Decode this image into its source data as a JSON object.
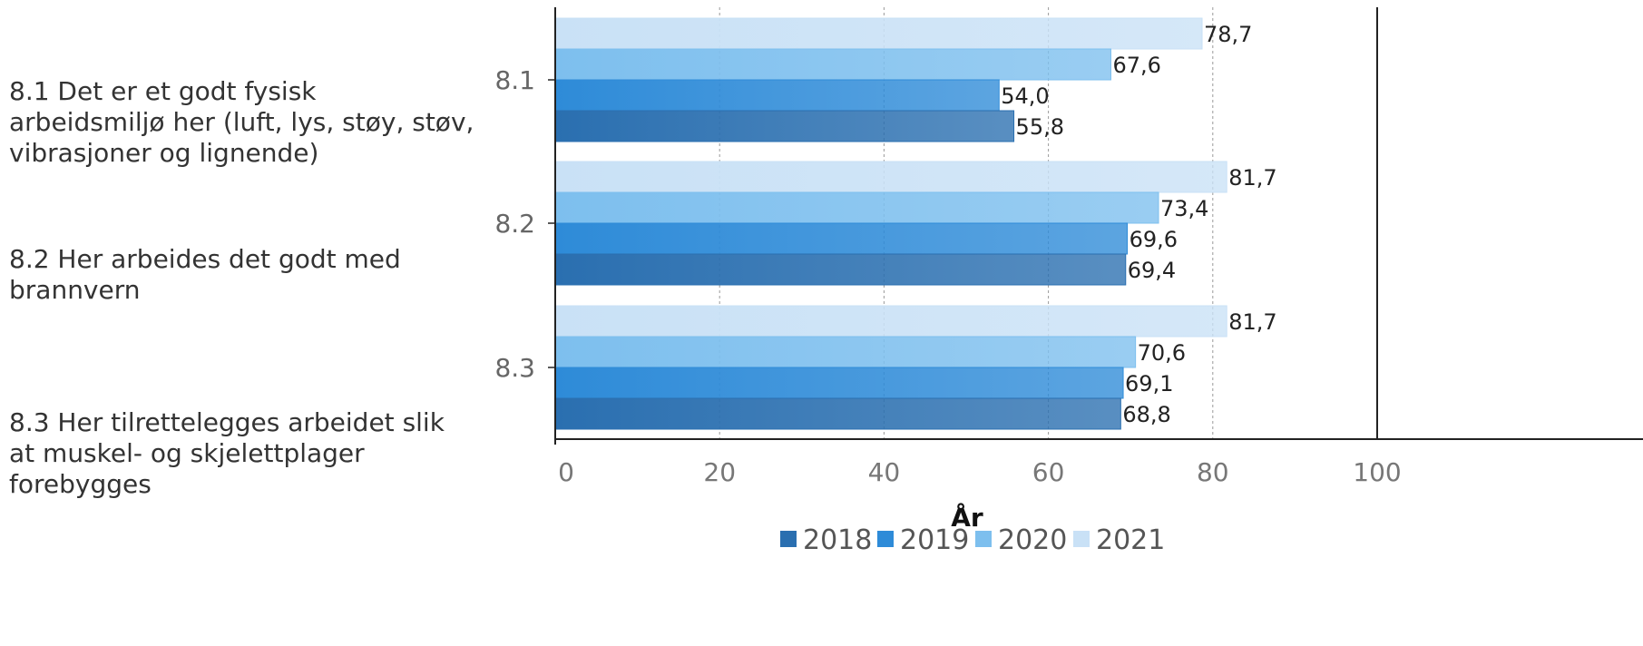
{
  "chart_data": {
    "type": "bar",
    "orientation": "horizontal",
    "categories": [
      "8.1",
      "8.2",
      "8.3"
    ],
    "category_descriptions": [
      [
        "8.1 Det er et godt fysisk",
        "arbeidsmiljø her (luft, lys, støy, støv,",
        "vibrasjoner og lignende)"
      ],
      [
        "8.2 Her arbeides det godt med",
        "brannvern"
      ],
      [
        "8.3 Her tilrettelegges arbeidet slik",
        "at muskel- og skjelettplager",
        "forebygges"
      ]
    ],
    "series": [
      {
        "name": "2018",
        "values": [
          55.8,
          69.4,
          68.8
        ],
        "labels": [
          "55,8",
          "69,4",
          "68,8"
        ],
        "color": "#2a6fb0"
      },
      {
        "name": "2019",
        "values": [
          54.0,
          69.6,
          69.1
        ],
        "labels": [
          "54,0",
          "69,6",
          "69,1"
        ],
        "color": "#2e8bd8"
      },
      {
        "name": "2020",
        "values": [
          67.6,
          73.4,
          70.6
        ],
        "labels": [
          "67,6",
          "73,4",
          "70,6"
        ],
        "color": "#7dbfee"
      },
      {
        "name": "2021",
        "values": [
          78.7,
          81.7,
          81.7
        ],
        "labels": [
          "78,7",
          "81,7",
          "81,7"
        ],
        "color": "#c9e1f6"
      }
    ],
    "xlim": [
      0,
      100
    ],
    "x_ticks": [
      0,
      20,
      40,
      60,
      80,
      100
    ],
    "x_grid": "dotted",
    "legend": {
      "title": "År",
      "position": "bottom"
    }
  }
}
